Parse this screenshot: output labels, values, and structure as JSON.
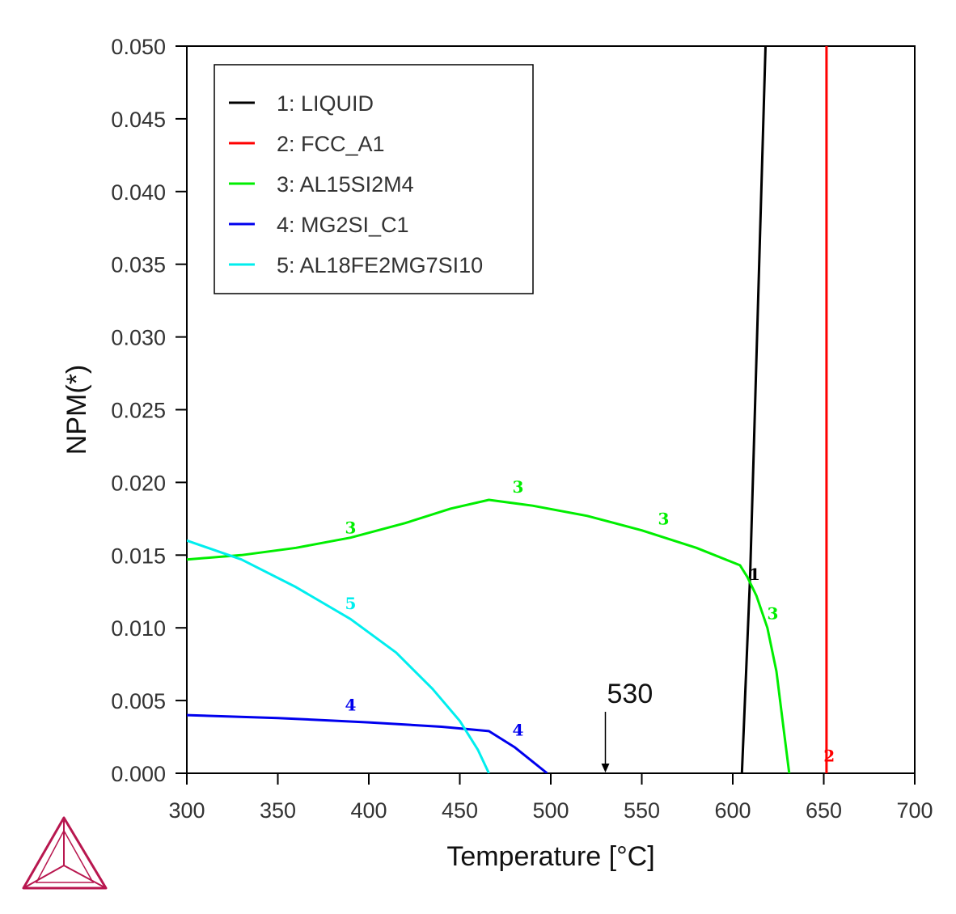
{
  "chart_data": {
    "type": "line",
    "xlabel": "Temperature [°C]",
    "ylabel": "NPM(*)",
    "xlim": [
      300,
      700
    ],
    "ylim": [
      0,
      0.05
    ],
    "x_ticks": [
      "300",
      "350",
      "400",
      "450",
      "500",
      "550",
      "600",
      "650",
      "700"
    ],
    "y_ticks": [
      "0.000",
      "0.005",
      "0.010",
      "0.015",
      "0.020",
      "0.025",
      "0.030",
      "0.035",
      "0.040",
      "0.045",
      "0.050"
    ],
    "grid": false,
    "legend_position": "top-left",
    "series": [
      {
        "name": "1: LIQUID",
        "label": "1",
        "color": "#000000",
        "points": [
          [
            605,
            0
          ],
          [
            609.5,
            0.0135
          ],
          [
            618,
            0.05
          ]
        ],
        "label_at": [
          612,
          0.0133
        ]
      },
      {
        "name": "2: FCC_A1",
        "label": "2",
        "color": "#ff0000",
        "points": [
          [
            651.5,
            0
          ],
          [
            651.5,
            0.05
          ]
        ],
        "label_at": [
          653,
          0.0008
        ]
      },
      {
        "name": "3: AL15SI2M4",
        "label": "3",
        "color": "#00ee00",
        "points": [
          [
            300,
            0.0147
          ],
          [
            330,
            0.015
          ],
          [
            360,
            0.0155
          ],
          [
            390,
            0.0162
          ],
          [
            420,
            0.0172
          ],
          [
            445,
            0.0182
          ],
          [
            466,
            0.0188
          ],
          [
            490,
            0.0184
          ],
          [
            520,
            0.0177
          ],
          [
            550,
            0.0167
          ],
          [
            580,
            0.0155
          ],
          [
            604,
            0.0143
          ],
          [
            608,
            0.0135
          ],
          [
            613,
            0.0122
          ],
          [
            619,
            0.01
          ],
          [
            624,
            0.007
          ],
          [
            628,
            0.003
          ],
          [
            631,
            0
          ]
        ],
        "label_at": [
          [
            390,
            0.0165
          ],
          [
            482,
            0.0193
          ],
          [
            562,
            0.0171
          ],
          [
            622,
            0.0106
          ]
        ]
      },
      {
        "name": "4: MG2SI_C1",
        "label": "4",
        "color": "#0000ee",
        "points": [
          [
            300,
            0.004
          ],
          [
            350,
            0.0038
          ],
          [
            400,
            0.0035
          ],
          [
            440,
            0.0032
          ],
          [
            466,
            0.0029
          ],
          [
            480,
            0.0018
          ],
          [
            498,
            0
          ]
        ],
        "label_at": [
          [
            390,
            0.0043
          ],
          [
            482,
            0.0026
          ]
        ]
      },
      {
        "name": "5: AL18FE2MG7SI10",
        "label": "5",
        "color": "#00eeee",
        "points": [
          [
            300,
            0.016
          ],
          [
            330,
            0.0147
          ],
          [
            360,
            0.0128
          ],
          [
            390,
            0.0106
          ],
          [
            415,
            0.0083
          ],
          [
            435,
            0.0058
          ],
          [
            450,
            0.0036
          ],
          [
            460,
            0.0016
          ],
          [
            466,
            0
          ]
        ],
        "label_at": [
          [
            390,
            0.0113
          ]
        ]
      }
    ],
    "annotations": [
      {
        "text": "530",
        "x": 530,
        "y": 0
      }
    ]
  }
}
